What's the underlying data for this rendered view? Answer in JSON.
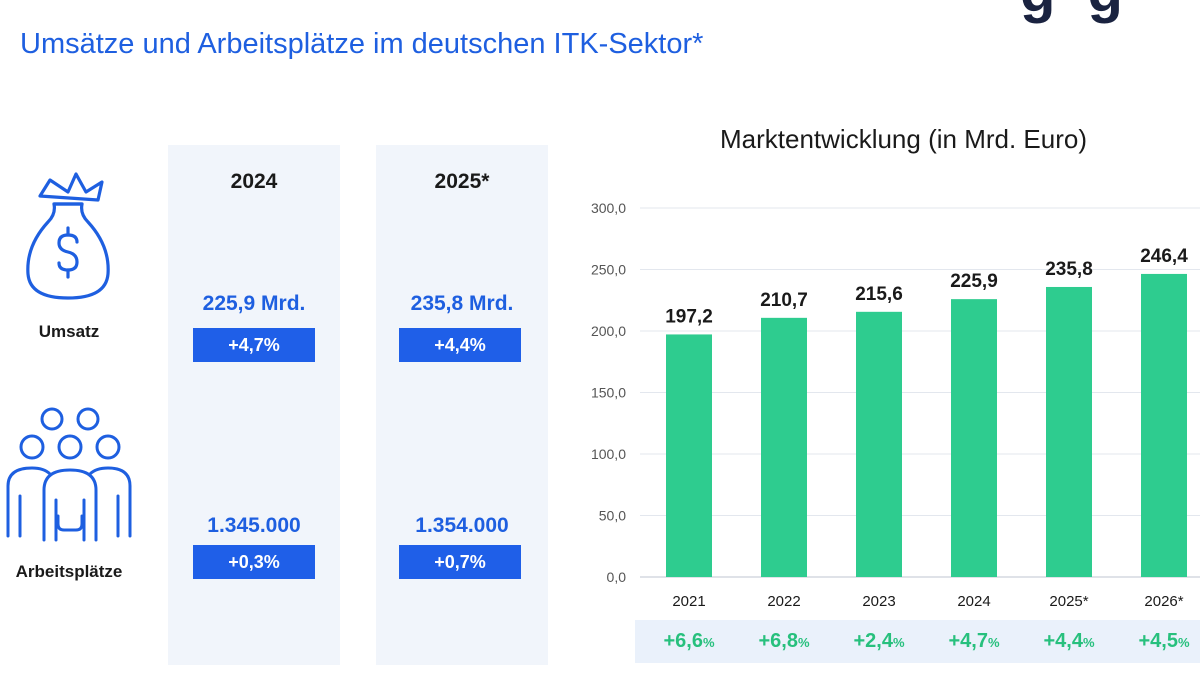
{
  "header": {
    "subtitle": "Umsätze und Arbeitsplätze im deutschen ITK-Sektor*"
  },
  "summary": {
    "rows": {
      "umsatz_label": "Umsatz",
      "arbeitsplaetze_label": "Arbeitsplätze"
    },
    "columns": [
      {
        "year": "2024",
        "umsatz": "225,9 Mrd.",
        "umsatz_change": "+4,7%",
        "jobs": "1.345.000",
        "jobs_change": "+0,3%"
      },
      {
        "year": "2025*",
        "umsatz": "235,8 Mrd.",
        "umsatz_change": "+4,4%",
        "jobs": "1.354.000",
        "jobs_change": "+0,7%"
      }
    ]
  },
  "colors": {
    "accent_blue": "#1e5fe0",
    "box_blue": "#1f5fe8",
    "bar_green": "#2ecc8f",
    "growth_green": "#27c07d",
    "panel_bg": "#f1f5fb"
  },
  "icons": [
    "money-bag-icon",
    "people-group-icon"
  ],
  "chart_data": {
    "type": "bar",
    "title": "Marktentwicklung (in Mrd. Euro)",
    "categories": [
      "2021",
      "2022",
      "2023",
      "2024",
      "2025*",
      "2026*"
    ],
    "values": [
      197.2,
      210.7,
      215.6,
      225.9,
      235.8,
      246.4
    ],
    "value_labels": [
      "197,2",
      "210,7",
      "215,6",
      "225,9",
      "235,8",
      "246,4"
    ],
    "growth_labels": [
      "+6,6",
      "+6,8",
      "+2,4",
      "+4,7",
      "+4,4",
      "+4,5"
    ],
    "growth_unit": "%",
    "ylim": [
      0,
      300
    ],
    "yticks": [
      "0,0",
      "50,0",
      "100,0",
      "150,0",
      "200,0",
      "250,0",
      "300,0"
    ],
    "grid": true,
    "xlabel": "",
    "ylabel": ""
  }
}
